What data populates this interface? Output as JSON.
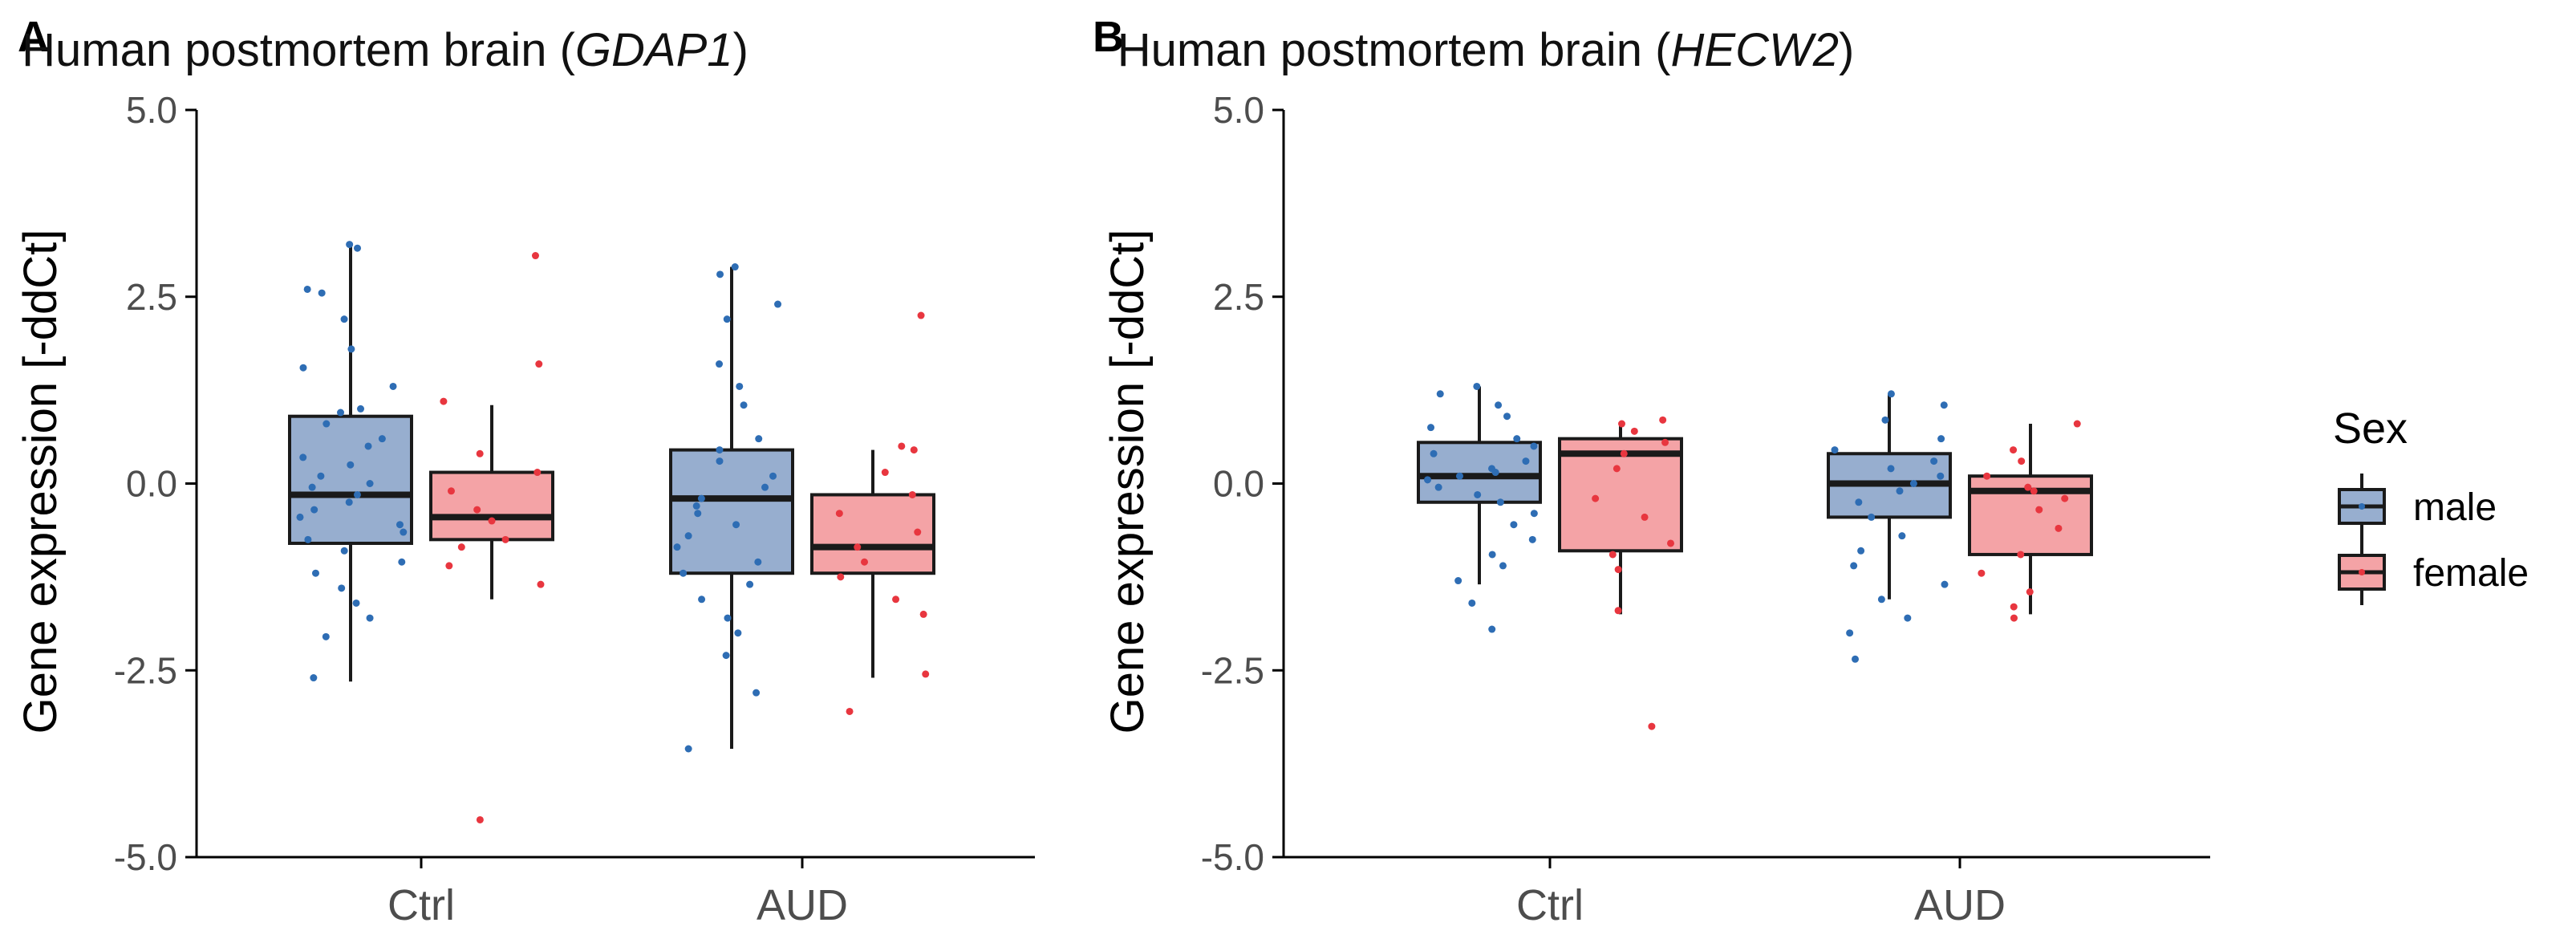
{
  "colors": {
    "male_fill": "#97AECF",
    "female_fill": "#F4A3A6",
    "male_point": "#2E6DB4",
    "female_point": "#E8363F",
    "line": "#1a1a1a",
    "axis": "#000000"
  },
  "legend": {
    "title": "Sex",
    "entries": [
      "male",
      "female"
    ],
    "placement": "right"
  },
  "chart_data": [
    {
      "type": "box",
      "panel_label": "A",
      "title_prefix": "Human postmortem brain (",
      "title_gene": "GDAP1",
      "title_suffix": ")",
      "ylabel": "Gene expression [-ddCt]",
      "xlabel": "",
      "ylim": [
        -5.0,
        5.0
      ],
      "yticks": [
        -5.0,
        -2.5,
        0.0,
        2.5,
        5.0
      ],
      "ytick_labels": [
        "-5.0",
        "-2.5",
        "0.0",
        "2.5",
        "5.0"
      ],
      "categories": [
        "Ctrl",
        "AUD"
      ],
      "series": [
        {
          "name": "male",
          "boxes": [
            {
              "min": -2.65,
              "q1": -0.8,
              "median": -0.15,
              "q3": 0.9,
              "max": 3.2,
              "points": [
                3.2,
                3.15,
                2.6,
                2.55,
                2.2,
                1.8,
                1.55,
                1.3,
                1.0,
                0.95,
                0.8,
                0.6,
                0.5,
                0.35,
                0.25,
                0.1,
                0.0,
                -0.05,
                -0.15,
                -0.25,
                -0.35,
                -0.45,
                -0.55,
                -0.65,
                -0.75,
                -0.9,
                -1.05,
                -1.2,
                -1.4,
                -1.6,
                -1.8,
                -2.05,
                -2.6
              ]
            },
            {
              "min": -3.55,
              "q1": -1.2,
              "median": -0.2,
              "q3": 0.45,
              "max": 2.9,
              "points": [
                2.9,
                2.8,
                2.4,
                2.2,
                1.6,
                1.3,
                1.05,
                0.6,
                0.45,
                0.3,
                0.1,
                -0.05,
                -0.2,
                -0.3,
                -0.4,
                -0.55,
                -0.7,
                -0.85,
                -1.05,
                -1.2,
                -1.35,
                -1.55,
                -1.8,
                -2.0,
                -2.3,
                -2.8,
                -3.55
              ]
            }
          ]
        },
        {
          "name": "female",
          "boxes": [
            {
              "min": -1.55,
              "q1": -0.75,
              "median": -0.45,
              "q3": 0.15,
              "max": 1.05,
              "points": [
                3.05,
                1.6,
                1.1,
                0.4,
                0.15,
                -0.1,
                -0.35,
                -0.5,
                -0.75,
                -0.85,
                -1.1,
                -1.35,
                -4.5
              ]
            },
            {
              "min": -2.6,
              "q1": -1.2,
              "median": -0.85,
              "q3": -0.15,
              "max": 0.45,
              "points": [
                2.25,
                0.5,
                0.45,
                0.15,
                -0.15,
                -0.4,
                -0.65,
                -0.85,
                -1.05,
                -1.25,
                -1.55,
                -1.75,
                -2.55,
                -3.05
              ]
            }
          ]
        }
      ]
    },
    {
      "type": "box",
      "panel_label": "B",
      "title_prefix": "Human postmortem brain (",
      "title_gene": "HECW2",
      "title_suffix": ")",
      "ylabel": "Gene expression [-ddCt]",
      "xlabel": "",
      "ylim": [
        -5.0,
        5.0
      ],
      "yticks": [
        -5.0,
        -2.5,
        0.0,
        2.5,
        5.0
      ],
      "ytick_labels": [
        "-5.0",
        "-2.5",
        "0.0",
        "2.5",
        "5.0"
      ],
      "categories": [
        "Ctrl",
        "AUD"
      ],
      "series": [
        {
          "name": "male",
          "boxes": [
            {
              "min": -1.35,
              "q1": -0.25,
              "median": 0.1,
              "q3": 0.55,
              "max": 1.3,
              "points": [
                1.3,
                1.2,
                1.05,
                0.9,
                0.75,
                0.6,
                0.5,
                0.4,
                0.3,
                0.2,
                0.15,
                0.1,
                0.05,
                -0.05,
                -0.15,
                -0.25,
                -0.4,
                -0.55,
                -0.75,
                -0.95,
                -1.1,
                -1.3,
                -1.6,
                -1.95
              ]
            },
            {
              "min": -1.55,
              "q1": -0.45,
              "median": 0.0,
              "q3": 0.4,
              "max": 1.2,
              "points": [
                1.2,
                1.05,
                0.85,
                0.6,
                0.45,
                0.3,
                0.2,
                0.1,
                0.0,
                -0.1,
                -0.25,
                -0.45,
                -0.7,
                -0.9,
                -1.1,
                -1.35,
                -1.55,
                -1.8,
                -2.0,
                -2.35
              ]
            }
          ]
        },
        {
          "name": "female",
          "boxes": [
            {
              "min": -1.75,
              "q1": -0.9,
              "median": 0.4,
              "q3": 0.6,
              "max": 0.8,
              "points": [
                0.85,
                0.8,
                0.7,
                0.55,
                0.4,
                0.2,
                -0.2,
                -0.45,
                -0.8,
                -0.95,
                -1.15,
                -1.7,
                -3.25
              ]
            },
            {
              "min": -1.75,
              "q1": -0.95,
              "median": -0.1,
              "q3": 0.1,
              "max": 0.8,
              "points": [
                0.8,
                0.45,
                0.3,
                0.1,
                -0.05,
                -0.1,
                -0.2,
                -0.35,
                -0.6,
                -0.95,
                -1.2,
                -1.45,
                -1.65,
                -1.8
              ]
            }
          ]
        }
      ]
    }
  ]
}
